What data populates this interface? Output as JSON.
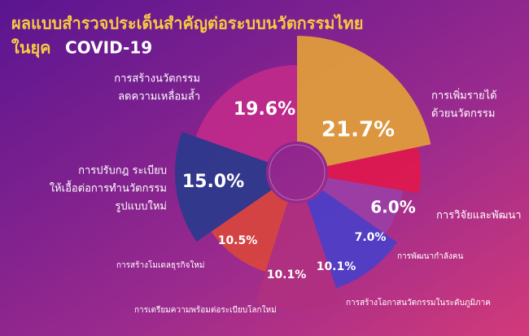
{
  "chart_data": {
    "type": "pie",
    "title": [
      "ผลแบบสำรวจประเด็นสำคัญต่อระบบนวัตกรรมไทย",
      "ในยุค",
      "COVID-19"
    ],
    "categories": [
      [
        "การเพิ่มรายได้",
        "ด้วยนวัตกรรม"
      ],
      [
        "การวิจัยและพัฒนา"
      ],
      [
        "การพัฒนากำลังคน"
      ],
      [
        "การสร้างโอกาสนวัตกรรมในระดับภูมิภาค"
      ],
      [
        "การเตรียมความพร้อมต่อระเบียบโลกใหม่"
      ],
      [
        "การสร้างโมเดลธุรกิจใหม่"
      ],
      [
        "การปรับกฎ ระเบียบ",
        "ให้เอื้อต่อการทำนวัตกรรม",
        "รูปแบบใหม่"
      ],
      [
        "การสร้างนวัตกรรม",
        "ลดความเหลื่อมล้ำ"
      ]
    ],
    "values": [
      21.7,
      6.0,
      7.0,
      10.1,
      10.1,
      10.5,
      15.0,
      19.6
    ],
    "value_labels": [
      "21.7%",
      "6.0%",
      "7.0%",
      "10.1%",
      "10.1%",
      "10.5%",
      "15.0%",
      "19.6%"
    ],
    "colors": [
      "#e3a03a",
      "#e0184e",
      "#9b3fa6",
      "#4b3fc8",
      "#b0307f",
      "#d9453e",
      "#2a3a8c",
      "#c02a8a"
    ]
  }
}
